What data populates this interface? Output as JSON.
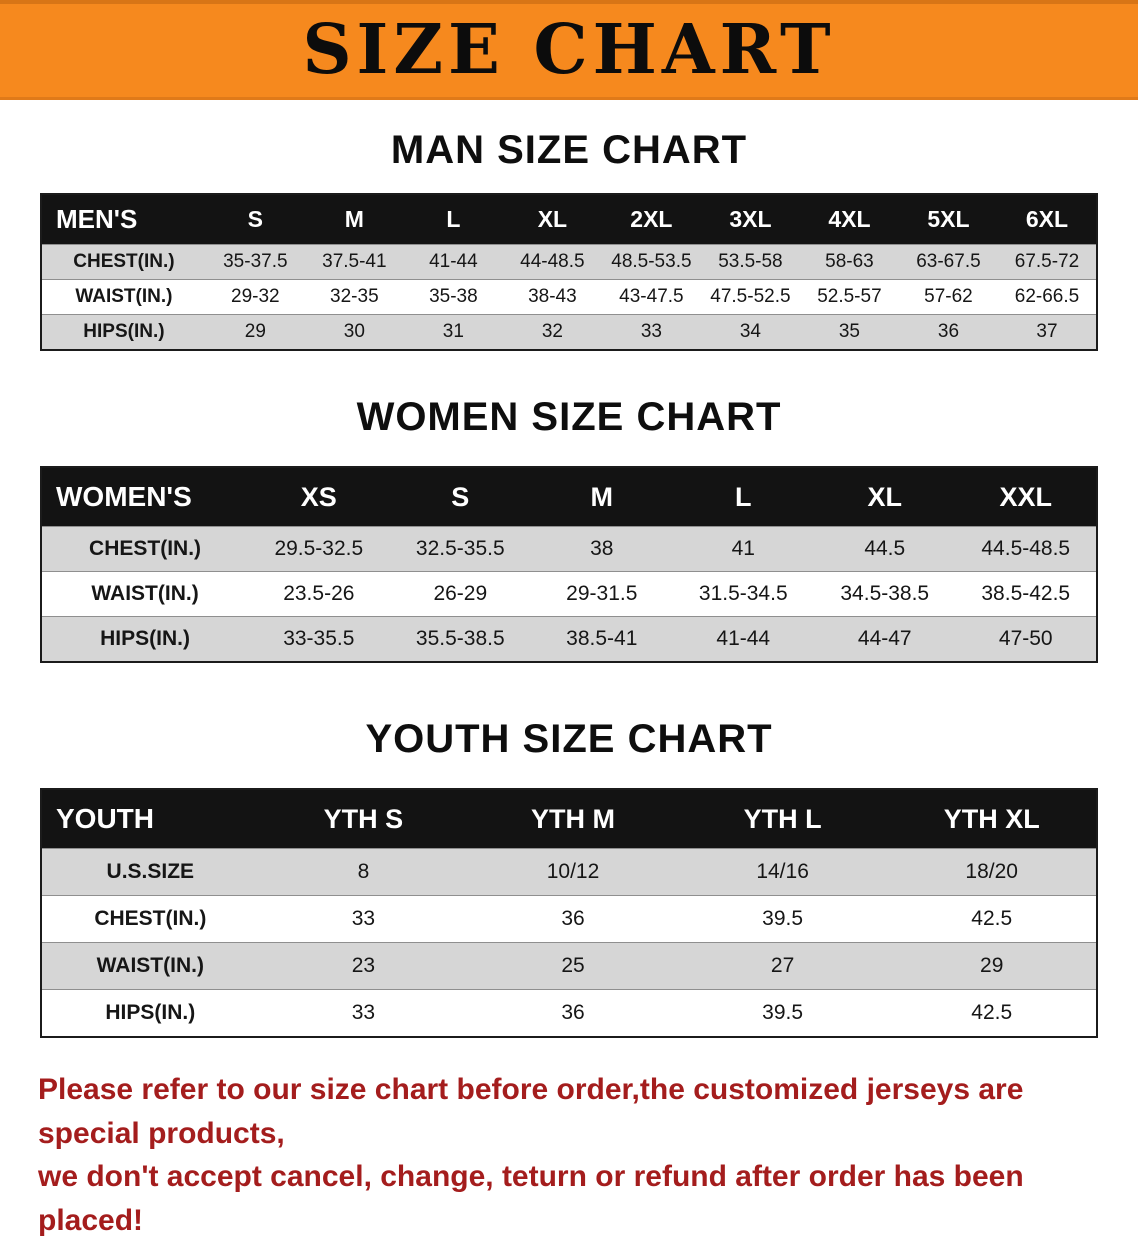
{
  "banner": {
    "title": "SIZE CHART",
    "bg_color": "#F6891E"
  },
  "men": {
    "heading": "MAN SIZE CHART",
    "table": {
      "header": [
        "MEN'S",
        "S",
        "M",
        "L",
        "XL",
        "2XL",
        "3XL",
        "4XL",
        "5XL",
        "6XL"
      ],
      "rows": [
        [
          "CHEST(IN.)",
          "35-37.5",
          "37.5-41",
          "41-44",
          "44-48.5",
          "48.5-53.5",
          "53.5-58",
          "58-63",
          "63-67.5",
          "67.5-72"
        ],
        [
          "WAIST(IN.)",
          "29-32",
          "32-35",
          "35-38",
          "38-43",
          "43-47.5",
          "47.5-52.5",
          "52.5-57",
          "57-62",
          "62-66.5"
        ],
        [
          "HIPS(IN.)",
          "29",
          "30",
          "31",
          "32",
          "33",
          "34",
          "35",
          "36",
          "37"
        ]
      ]
    }
  },
  "women": {
    "heading": "WOMEN SIZE CHART",
    "table": {
      "header": [
        "WOMEN'S",
        "XS",
        "S",
        "M",
        "L",
        "XL",
        "XXL"
      ],
      "rows": [
        [
          "CHEST(IN.)",
          "29.5-32.5",
          "32.5-35.5",
          "38",
          "41",
          "44.5",
          "44.5-48.5"
        ],
        [
          "WAIST(IN.)",
          "23.5-26",
          "26-29",
          "29-31.5",
          "31.5-34.5",
          "34.5-38.5",
          "38.5-42.5"
        ],
        [
          "HIPS(IN.)",
          "33-35.5",
          "35.5-38.5",
          "38.5-41",
          "41-44",
          "44-47",
          "47-50"
        ]
      ]
    }
  },
  "youth": {
    "heading": "YOUTH SIZE CHART",
    "table": {
      "header": [
        "YOUTH",
        "YTH S",
        "YTH M",
        "YTH L",
        "YTH XL"
      ],
      "rows": [
        [
          "U.S.SIZE",
          "8",
          "10/12",
          "14/16",
          "18/20"
        ],
        [
          "CHEST(IN.)",
          "33",
          "36",
          "39.5",
          "42.5"
        ],
        [
          "WAIST(IN.)",
          "23",
          "25",
          "27",
          "29"
        ],
        [
          "HIPS(IN.)",
          "33",
          "36",
          "39.5",
          "42.5"
        ]
      ]
    }
  },
  "footer": {
    "color": "#A41D1D",
    "lines": [
      "Please refer to our size chart before order,the customized jerseys are special products,",
      "we don't accept cancel, change, teturn or refund after order has been placed!"
    ]
  }
}
